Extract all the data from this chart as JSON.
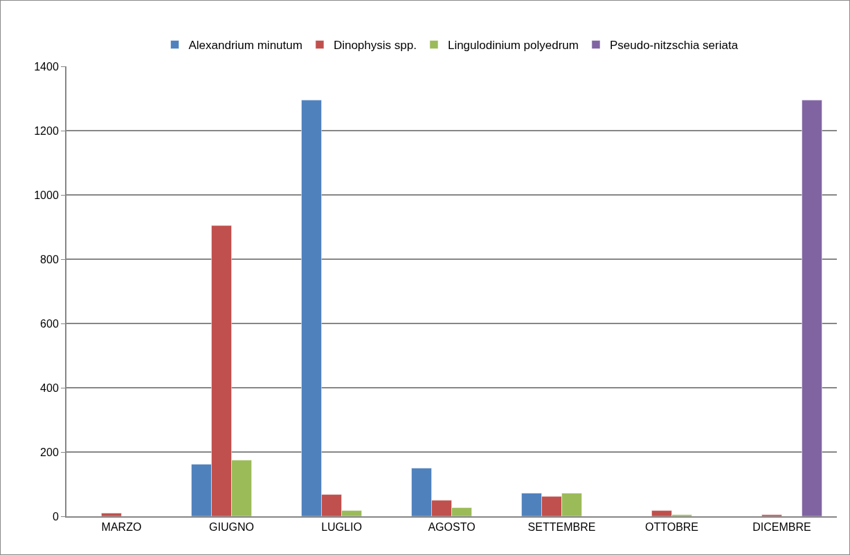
{
  "chart_data": {
    "type": "bar",
    "categories": [
      "MARZO",
      "GIUGNO",
      "LUGLIO",
      "AGOSTO",
      "SETTEMBRE",
      "OTTOBRE",
      "DICEMBRE"
    ],
    "series": [
      {
        "name": "Alexandrium minutum",
        "color": "#4f81bd",
        "values": [
          null,
          162,
          1295,
          150,
          72,
          null,
          null
        ]
      },
      {
        "name": "Dinophysis spp.",
        "color": "#c0504d",
        "values": [
          10,
          905,
          68,
          50,
          62,
          18,
          5
        ]
      },
      {
        "name": "Lingulodinium polyedrum",
        "color": "#9bbb59",
        "values": [
          null,
          175,
          18,
          27,
          72,
          5,
          null
        ]
      },
      {
        "name": "Pseudo-nitzschia seriata",
        "color": "#8064a2",
        "values": [
          null,
          null,
          null,
          null,
          null,
          null,
          1295
        ]
      }
    ],
    "ylim": [
      0,
      1400
    ],
    "yticks": [
      0,
      200,
      400,
      600,
      800,
      1000,
      1200,
      1400
    ],
    "grid": "y",
    "legend": "top"
  }
}
